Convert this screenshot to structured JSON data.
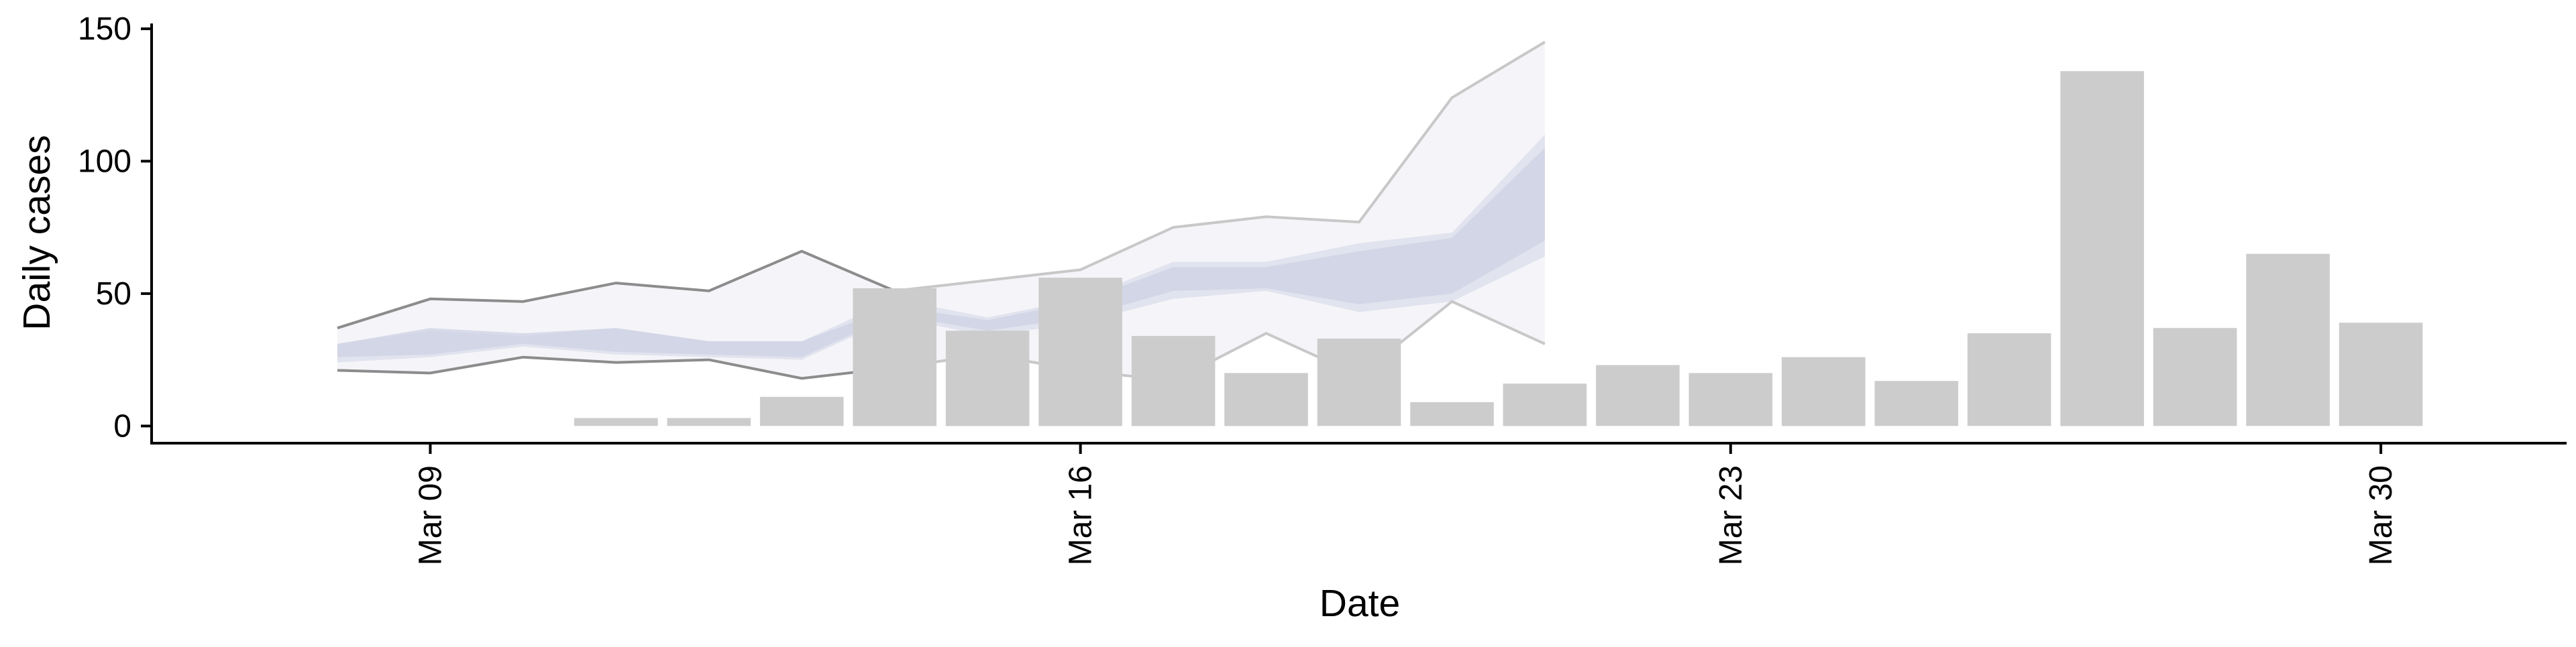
{
  "chart_data": {
    "type": "bar",
    "title": "",
    "xlabel": "Date",
    "ylabel": "Daily cases",
    "ylim": [
      -7,
      152
    ],
    "y_ticks": [
      0,
      50,
      100,
      150
    ],
    "y_tick_labels": [
      "0",
      "50",
      "100",
      "150"
    ],
    "x_ticks": [
      "2020-03-09",
      "2020-03-16",
      "2020-03-23",
      "2020-03-30"
    ],
    "x_tick_labels": [
      "Mar 09",
      "Mar 16",
      "Mar 23",
      "Mar 30"
    ],
    "x_range": [
      "2020-03-06",
      "2020-04-01"
    ],
    "grid": false,
    "legend": "none",
    "colors": {
      "bars": "#cccccc",
      "outer_band": "#f5f5f9",
      "inner_band": "#e1e3ee",
      "core_band": "#cdd1e3",
      "history_line": "#8c8c8c",
      "forecast_line": "#c8c8c8",
      "axis": "#000000"
    },
    "bars": {
      "dates": [
        "2020-03-11",
        "2020-03-12",
        "2020-03-13",
        "2020-03-14",
        "2020-03-15",
        "2020-03-16",
        "2020-03-17",
        "2020-03-18",
        "2020-03-19",
        "2020-03-20",
        "2020-03-21",
        "2020-03-22",
        "2020-03-23",
        "2020-03-24",
        "2020-03-25",
        "2020-03-26",
        "2020-03-27",
        "2020-03-28",
        "2020-03-29",
        "2020-03-30",
        "2020-03-31"
      ],
      "values": [
        3,
        3,
        11,
        52,
        36,
        56,
        34,
        20,
        33,
        9,
        16,
        23,
        20,
        26,
        17,
        35,
        134,
        37,
        65,
        39,
        null
      ]
    },
    "forecast_band": {
      "dates": [
        "2020-03-08",
        "2020-03-09",
        "2020-03-10",
        "2020-03-11",
        "2020-03-12",
        "2020-03-13",
        "2020-03-14",
        "2020-03-15",
        "2020-03-16",
        "2020-03-17",
        "2020-03-18",
        "2020-03-19",
        "2020-03-20",
        "2020-03-21"
      ],
      "outer_upper": [
        37,
        48,
        47,
        54,
        51,
        66,
        51,
        55,
        59,
        75,
        79,
        77,
        124,
        145
      ],
      "outer_lower": [
        21,
        20,
        26,
        24,
        25,
        18,
        22,
        27,
        21,
        17,
        35,
        19,
        47,
        31
      ],
      "inner_upper": [
        31,
        36,
        34,
        37,
        32,
        32,
        48,
        41,
        48,
        62,
        62,
        69,
        73,
        110
      ],
      "inner_lower": [
        24,
        26,
        30,
        27,
        26,
        25,
        41,
        34,
        39,
        48,
        51,
        43,
        47,
        64
      ],
      "core_upper": [
        31,
        37,
        35,
        37,
        32,
        32,
        45,
        40,
        47,
        60,
        60,
        66,
        71,
        105
      ],
      "core_lower": [
        26,
        27,
        31,
        28,
        27,
        26,
        42,
        36,
        41,
        51,
        52,
        46,
        50,
        70
      ],
      "history_end_date": "2020-03-14"
    }
  }
}
